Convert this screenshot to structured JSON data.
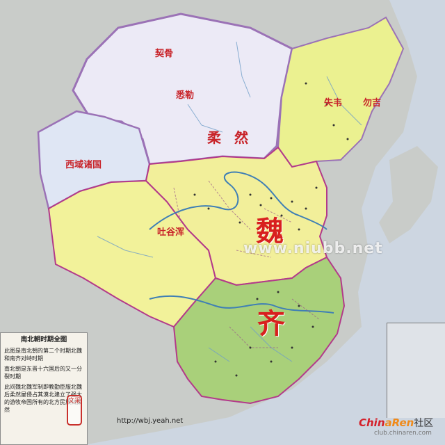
{
  "map": {
    "labels": {
      "region_a": "契骨",
      "region_b": "悉勒",
      "region_c": "柔 然",
      "region_d": "西域诸国",
      "region_e": "吐谷浑",
      "region_f": "失韦",
      "region_g": "勿吉",
      "region_h": "魏",
      "region_i": "齐"
    },
    "watermark": "www.niubb.net",
    "colors": {
      "rouran": "#eceaf6",
      "rouran_border": "#9b72b6",
      "western": "#dfe6f4",
      "yellow": "#f2f29a",
      "north_yellow": "#ebf190",
      "wei_yellow": "#f2ef9a",
      "qi_green": "#a9d07a",
      "sea": "#d3dbe6",
      "land": "#c8ccd0"
    }
  },
  "legend": {
    "title": "南北朝时期全图",
    "p1": "此图是南北朝的第二个时期北魏和南齐对峙时期",
    "p2": "南北朝是东晋十六国后的又一分裂时期",
    "p3": "此间魏北魏军制即教勤臣服北魏后柔然屡侵占其漠北建立了强大的游牧帝国所有的北方民族归柔然"
  },
  "stamp": "文采",
  "url": "http://wbj.yeah.net",
  "logo": {
    "brand_a": "Chin",
    "brand_b": "aRen",
    "brand_c": "社区",
    "sub": "club.chinaren.com"
  }
}
